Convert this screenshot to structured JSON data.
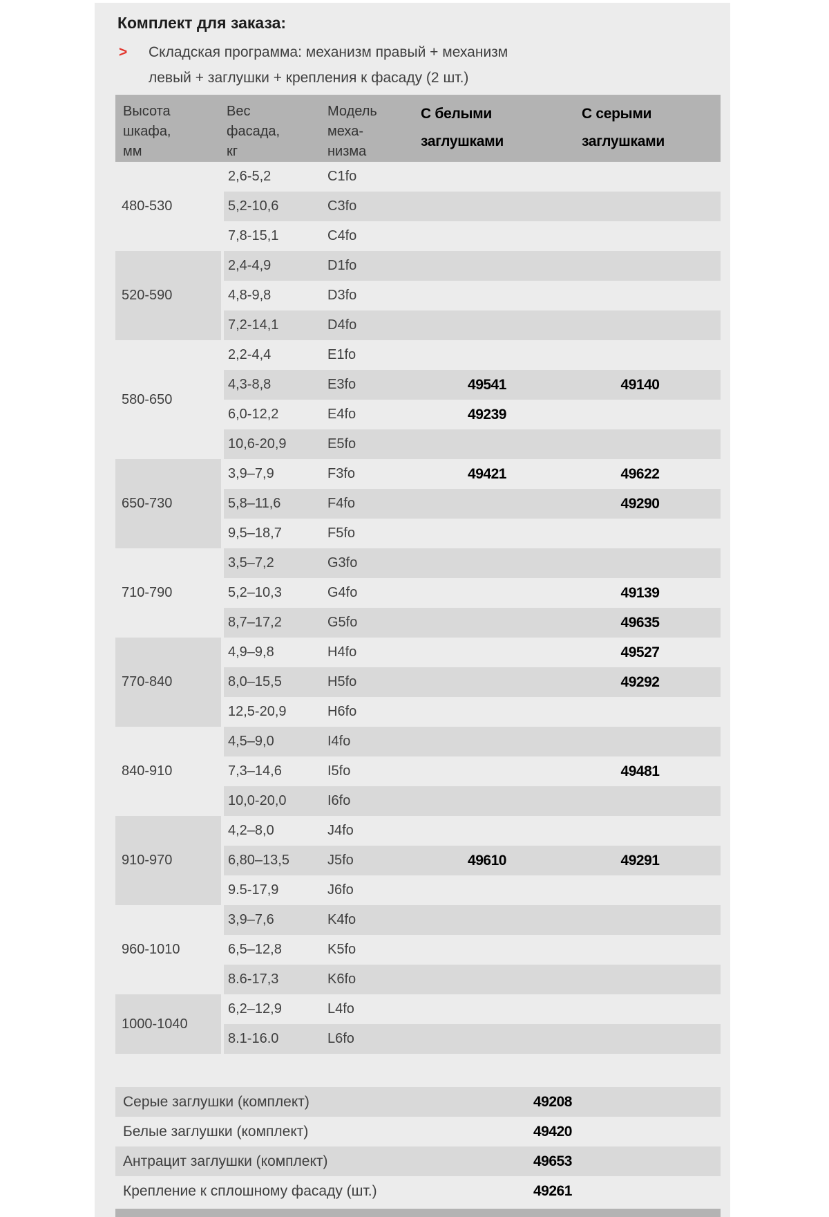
{
  "title": "Комплект для заказа:",
  "bullet": {
    "marker": ">",
    "line1": "Складская программа: механизм правый + механизм",
    "line2": "левый + заглушки + крепления к фасаду (2 шт.)"
  },
  "table": {
    "headers": [
      {
        "lines": [
          "Высота",
          "шкафа,",
          "мм"
        ],
        "bold": false
      },
      {
        "lines": [
          "Вес",
          "фасада,",
          "кг"
        ],
        "bold": false
      },
      {
        "lines": [
          "Модель",
          "меха-",
          "низма"
        ],
        "bold": false
      },
      {
        "lines": [
          "С белыми",
          "заглушками"
        ],
        "bold": true
      },
      {
        "lines": [
          "С серыми",
          "заглушками"
        ],
        "bold": true
      }
    ],
    "groups": [
      {
        "height": "480-530",
        "rows": [
          {
            "weight": "2,6-5,2",
            "model": "C1fo",
            "white": "",
            "grey": ""
          },
          {
            "weight": "5,2-10,6",
            "model": "C3fo",
            "white": "",
            "grey": ""
          },
          {
            "weight": "7,8-15,1",
            "model": "C4fo",
            "white": "",
            "grey": ""
          }
        ]
      },
      {
        "height": "520-590",
        "rows": [
          {
            "weight": "2,4-4,9",
            "model": "D1fo",
            "white": "",
            "grey": ""
          },
          {
            "weight": "4,8-9,8",
            "model": "D3fo",
            "white": "",
            "grey": ""
          },
          {
            "weight": "7,2-14,1",
            "model": "D4fo",
            "white": "",
            "grey": ""
          }
        ]
      },
      {
        "height": "580-650",
        "rows": [
          {
            "weight": "2,2-4,4",
            "model": "E1fo",
            "white": "",
            "grey": ""
          },
          {
            "weight": "4,3-8,8",
            "model": "E3fo",
            "white": "49541",
            "grey": "49140"
          },
          {
            "weight": "6,0-12,2",
            "model": "E4fo",
            "white": "49239",
            "grey": ""
          },
          {
            "weight": "10,6-20,9",
            "model": "E5fo",
            "white": "",
            "grey": ""
          }
        ]
      },
      {
        "height": "650-730",
        "rows": [
          {
            "weight": "3,9–7,9",
            "model": "F3fo",
            "white": "49421",
            "grey": "49622"
          },
          {
            "weight": "5,8–11,6",
            "model": "F4fo",
            "white": "",
            "grey": "49290"
          },
          {
            "weight": "9,5–18,7",
            "model": "F5fo",
            "white": "",
            "grey": ""
          }
        ]
      },
      {
        "height": "710-790",
        "rows": [
          {
            "weight": "3,5–7,2",
            "model": "G3fo",
            "white": "",
            "grey": ""
          },
          {
            "weight": "5,2–10,3",
            "model": "G4fo",
            "white": "",
            "grey": "49139"
          },
          {
            "weight": "8,7–17,2",
            "model": "G5fo",
            "white": "",
            "grey": "49635"
          }
        ]
      },
      {
        "height": "770-840",
        "rows": [
          {
            "weight": "4,9–9,8",
            "model": "H4fo",
            "white": "",
            "grey": "49527"
          },
          {
            "weight": "8,0–15,5",
            "model": "H5fo",
            "white": "",
            "grey": "49292"
          },
          {
            "weight": "12,5-20,9",
            "model": "H6fo",
            "white": "",
            "grey": ""
          }
        ]
      },
      {
        "height": "840-910",
        "rows": [
          {
            "weight": "4,5–9,0",
            "model": "I4fo",
            "white": "",
            "grey": ""
          },
          {
            "weight": "7,3–14,6",
            "model": "I5fo",
            "white": "",
            "grey": "49481"
          },
          {
            "weight": "10,0-20,0",
            "model": "I6fo",
            "white": "",
            "grey": ""
          }
        ]
      },
      {
        "height": "910-970",
        "rows": [
          {
            "weight": "4,2–8,0",
            "model": "J4fo",
            "white": "",
            "grey": ""
          },
          {
            "weight": "6,80–13,5",
            "model": "J5fo",
            "white": "49610",
            "grey": "49291"
          },
          {
            "weight": "9.5-17,9",
            "model": "J6fo",
            "white": "",
            "grey": ""
          }
        ]
      },
      {
        "height": "960-1010",
        "rows": [
          {
            "weight": "3,9–7,6",
            "model": "K4fo",
            "white": "",
            "grey": ""
          },
          {
            "weight": "6,5–12,8",
            "model": "K5fo",
            "white": "",
            "grey": ""
          },
          {
            "weight": "8.6-17,3",
            "model": "K6fo",
            "white": "",
            "grey": ""
          }
        ]
      },
      {
        "height": "1000-1040",
        "rows": [
          {
            "weight": "6,2–12,9",
            "model": "L4fo",
            "white": "",
            "grey": ""
          },
          {
            "weight": "8.1-16.0",
            "model": "L6fo",
            "white": "",
            "grey": ""
          }
        ]
      }
    ]
  },
  "extras": [
    {
      "label": "Серые заглушки (комплект)",
      "code": "49208"
    },
    {
      "label": "Белые заглушки (комплект)",
      "code": "49420"
    },
    {
      "label": "Антрацит заглушки (комплект)",
      "code": "49653"
    },
    {
      "label": "Крепление к сплошному фасаду (шт.)",
      "code": "49261"
    }
  ],
  "colors": {
    "accent_red": "#e2342c",
    "header_grey": "#b3b3b3",
    "row_dark": "#d9d9d9",
    "row_light": "#ececec",
    "text_dark": "#3f3f3f",
    "code_black": "#000000"
  }
}
